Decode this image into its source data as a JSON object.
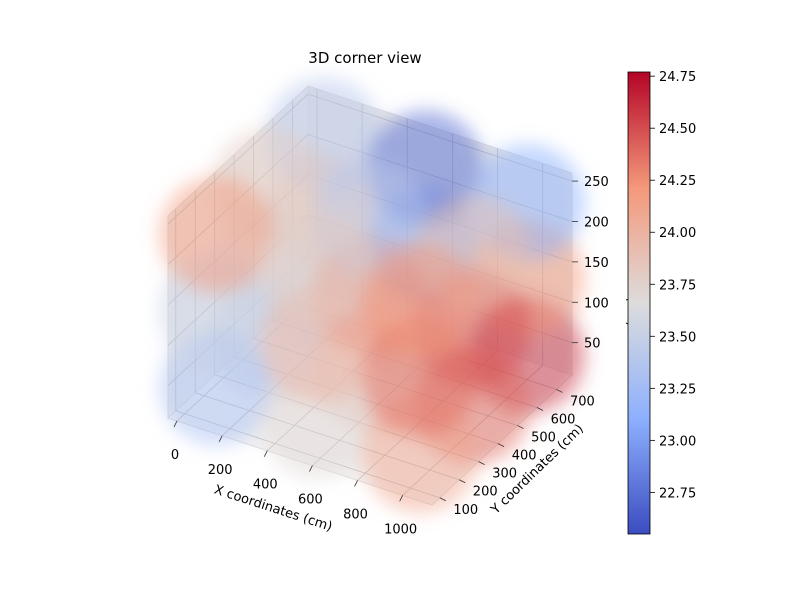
{
  "chart_data": {
    "type": "scatter3d",
    "title": "3D corner view",
    "xlabel": "X coordinates (cm)",
    "ylabel": "Y coordinates (cm)",
    "zlabel": "Z coordinates (cm)",
    "x": [
      100,
      100,
      100,
      550,
      550,
      550,
      1000,
      1000,
      1000,
      100,
      100,
      100,
      550,
      550,
      550,
      1000,
      1000,
      1000,
      100,
      100,
      100,
      550,
      550,
      550,
      1000,
      1000,
      1000
    ],
    "y": [
      700,
      700,
      700,
      700,
      700,
      700,
      700,
      700,
      700,
      420,
      420,
      420,
      420,
      420,
      420,
      420,
      420,
      420,
      150,
      150,
      150,
      150,
      150,
      150,
      150,
      150,
      150
    ],
    "z": [
      40,
      135,
      230,
      40,
      135,
      230,
      40,
      135,
      230,
      40,
      135,
      230,
      40,
      135,
      230,
      40,
      135,
      230,
      40,
      135,
      230,
      40,
      135,
      230,
      40,
      135,
      230
    ],
    "values": [
      23.6,
      23.9,
      23.4,
      23.7,
      23.0,
      22.7,
      24.6,
      24.2,
      23.1,
      23.5,
      23.6,
      23.8,
      23.9,
      24.3,
      23.4,
      24.4,
      24.5,
      23.9,
      23.3,
      23.5,
      24.2,
      23.7,
      24.0,
      23.8,
      24.1,
      24.4,
      24.2
    ],
    "xlim": [
      -40,
      1130
    ],
    "xticks": [
      0,
      200,
      400,
      600,
      800,
      1000
    ],
    "ylim": [
      60,
      780
    ],
    "yticks": [
      100,
      200,
      300,
      400,
      500,
      600,
      700
    ],
    "zlim": [
      10,
      260
    ],
    "zticks": [
      50,
      100,
      150,
      200,
      250
    ],
    "colormap": "coolwarm",
    "clim": [
      22.55,
      24.77
    ],
    "cticks": [
      22.75,
      {
        "value": 23,
        "label": "23.00"
      },
      23.25,
      {
        "value": 23.5,
        "label": "23.50"
      },
      23.75,
      {
        "value": 24,
        "label": "24.00"
      },
      24.25,
      {
        "value": 24.5,
        "label": "24.50"
      },
      24.75
    ],
    "grid": true
  }
}
